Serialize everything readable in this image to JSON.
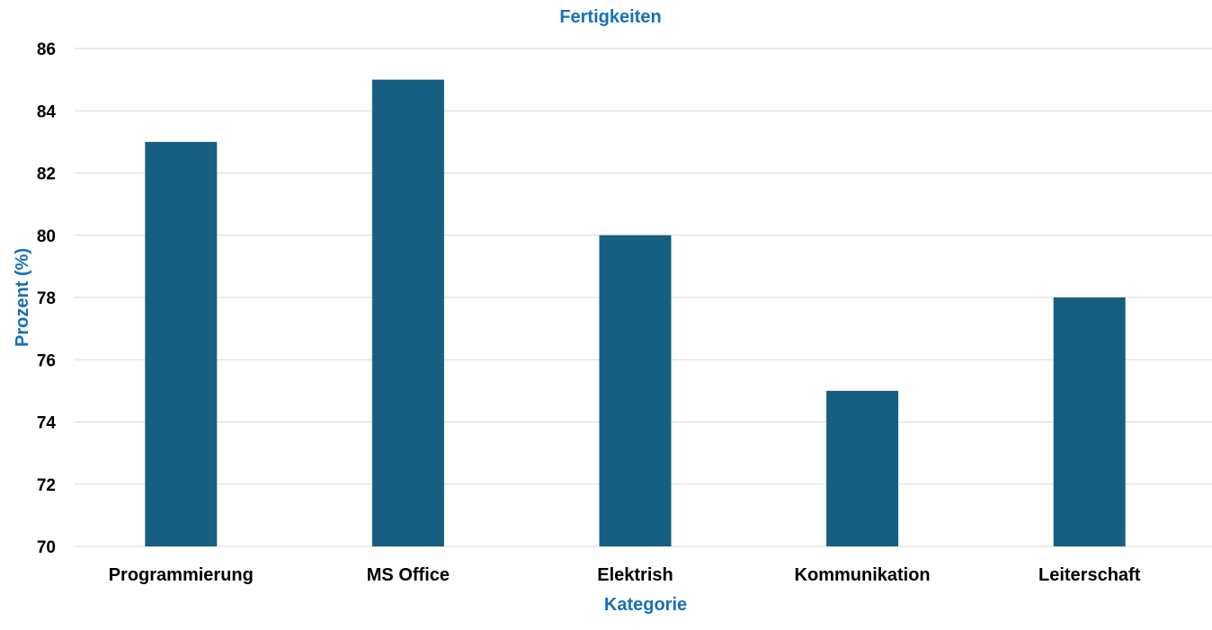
{
  "chart_data": {
    "type": "bar",
    "title": "Fertigkeiten",
    "xlabel": "Kategorie",
    "ylabel": "Prozent (%)",
    "categories": [
      "Programmierung",
      "MS Office",
      "Elektrish",
      "Kommunikation",
      "Leiterschaft"
    ],
    "values": [
      83,
      85,
      80,
      75,
      78
    ],
    "ylim": [
      70,
      86
    ],
    "yticks": [
      "70",
      "72",
      "74",
      "76",
      "78",
      "80",
      "82",
      "84",
      "86"
    ],
    "grid": true,
    "legend": "none",
    "colors": {
      "bar": "#175f82",
      "title": "#1570b8",
      "grid": "#d9d9d9"
    }
  }
}
